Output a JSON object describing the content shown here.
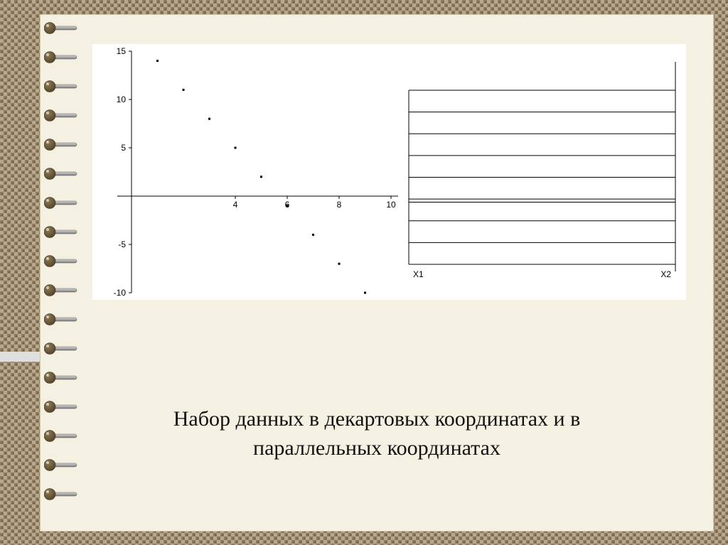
{
  "slide": {
    "caption_line1": "Набор данных в декартовых координатах и в",
    "caption_line2": "параллельных координатах"
  },
  "colors": {
    "paper_bg": "#f5f1e2",
    "chart_bg": "#ffffff",
    "axis": "#000000",
    "tick_label": "#000000",
    "texture_a": "#b8a78a",
    "texture_b": "#8c7b60",
    "texture_c": "#6e5f47",
    "ring_metal_light": "#d8d8d8",
    "ring_metal_dark": "#7a7a7a",
    "ring_bead": "#8e7a55",
    "ring_bead_dark": "#4f4026"
  },
  "scatter": {
    "type": "scatter",
    "xlim": [
      0,
      10
    ],
    "ylim": [
      -10,
      15
    ],
    "xticks": [
      4,
      6,
      8,
      10
    ],
    "yticks": [
      -10,
      -5,
      5,
      10,
      15
    ],
    "tick_fontsize": 12,
    "marker": "square",
    "marker_size": 3,
    "marker_color": "#000000",
    "axis_color": "#000000",
    "axis_width": 1,
    "points": [
      {
        "x": 1,
        "y": 14
      },
      {
        "x": 2,
        "y": 11
      },
      {
        "x": 3,
        "y": 8
      },
      {
        "x": 4,
        "y": 5
      },
      {
        "x": 5,
        "y": 2
      },
      {
        "x": 6,
        "y": -1
      },
      {
        "x": 7,
        "y": -4
      },
      {
        "x": 8,
        "y": -7
      },
      {
        "x": 9,
        "y": -10
      }
    ]
  },
  "parallel": {
    "type": "parallel-coordinates",
    "axis1_label": "X1",
    "axis2_label": "X2",
    "axis_label_fontsize": 12,
    "axis_color": "#000000",
    "line_color": "#000000",
    "line_width": 1,
    "x1_range": [
      1,
      9
    ],
    "x2_range": [
      -10,
      14
    ],
    "lines": [
      {
        "x1": 1,
        "x2": 14
      },
      {
        "x1": 2,
        "x2": 11
      },
      {
        "x1": 3,
        "x2": 8
      },
      {
        "x1": 4,
        "x2": 5
      },
      {
        "x1": 5,
        "x2": 2
      },
      {
        "x1": 6,
        "x2": -1
      },
      {
        "x1": 7,
        "x2": -4
      },
      {
        "x1": 8,
        "x2": -7
      },
      {
        "x1": 9,
        "x2": -10
      }
    ]
  },
  "binding": {
    "ring_count": 17,
    "ring_spacing": 41
  }
}
